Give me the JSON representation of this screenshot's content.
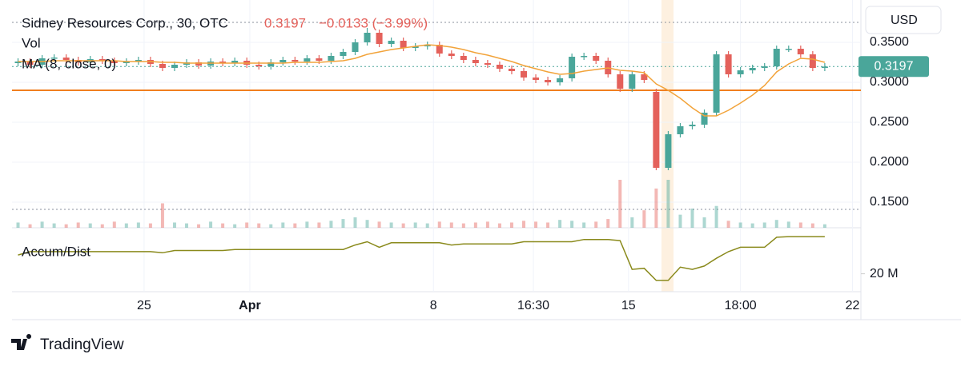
{
  "chart_data": {
    "type": "candlestick",
    "title": "Sidney Resources Corp., 30, OTC",
    "last_price": 0.3197,
    "change_label": "−0.0133 (−3.99%)",
    "volume_label": "Vol",
    "ma_label": "MA (8, close, 0)",
    "ad_label": "Accum/Dist",
    "currency": "USD",
    "brand": "TradingView",
    "grid": true,
    "up_color": "#4aa69a",
    "down_color": "#e4615b",
    "ma_color": "#f2a33a",
    "ad_color": "#8a8a1c",
    "level_color": "#f07f1f",
    "level": 0.29,
    "dotted_levels": [
      0.375,
      0.141
    ],
    "xlim": [
      -0.5,
      70
    ],
    "xticks": [
      {
        "value": 10.47,
        "label": "25"
      },
      {
        "value": 19.25,
        "label": "Apr"
      },
      {
        "value": 34.5,
        "label": "8"
      },
      {
        "value": 42.8,
        "label": "16:30"
      },
      {
        "value": 50.7,
        "label": "15"
      },
      {
        "value": 60,
        "label": "18:00"
      },
      {
        "value": 69.3,
        "label": "22"
      }
    ],
    "ylim": [
      0.12,
      0.4
    ],
    "yticks": [
      {
        "value": 0.35,
        "label": "0.3500"
      },
      {
        "value": 0.3,
        "label": "0.3000"
      },
      {
        "value": 0.25,
        "label": "0.2500"
      },
      {
        "value": 0.2,
        "label": "0.2000"
      },
      {
        "value": 0.15,
        "label": "0.1500"
      }
    ],
    "y2lim": [
      13,
      39
    ],
    "y2ticks": [
      {
        "value": 20,
        "label": "20 M"
      }
    ],
    "open": [
      0.324,
      0.326,
      0.322,
      0.33,
      0.331,
      0.328,
      0.325,
      0.329,
      0.327,
      0.324,
      0.326,
      0.328,
      0.323,
      0.318,
      0.322,
      0.325,
      0.321,
      0.326,
      0.324,
      0.327,
      0.322,
      0.32,
      0.325,
      0.328,
      0.326,
      0.33,
      0.327,
      0.333,
      0.338,
      0.35,
      0.362,
      0.348,
      0.352,
      0.343,
      0.345,
      0.347,
      0.336,
      0.333,
      0.328,
      0.324,
      0.322,
      0.317,
      0.314,
      0.306,
      0.303,
      0.3,
      0.305,
      0.332,
      0.333,
      0.327,
      0.31,
      0.292,
      0.31,
      0.288,
      0.193,
      0.235,
      0.245,
      0.247,
      0.262,
      0.335,
      0.31,
      0.315,
      0.318,
      0.32,
      0.342,
      0.342,
      0.335,
      0.318
    ],
    "high": [
      0.33,
      0.33,
      0.334,
      0.335,
      0.335,
      0.332,
      0.333,
      0.333,
      0.331,
      0.33,
      0.332,
      0.332,
      0.327,
      0.326,
      0.329,
      0.329,
      0.33,
      0.33,
      0.331,
      0.331,
      0.326,
      0.329,
      0.332,
      0.332,
      0.334,
      0.334,
      0.337,
      0.342,
      0.354,
      0.368,
      0.366,
      0.356,
      0.356,
      0.349,
      0.351,
      0.351,
      0.34,
      0.337,
      0.332,
      0.328,
      0.326,
      0.321,
      0.318,
      0.31,
      0.307,
      0.309,
      0.336,
      0.337,
      0.337,
      0.331,
      0.314,
      0.314,
      0.314,
      0.292,
      0.239,
      0.249,
      0.251,
      0.266,
      0.339,
      0.339,
      0.319,
      0.322,
      0.324,
      0.346,
      0.346,
      0.346,
      0.339,
      0.324
    ],
    "low": [
      0.32,
      0.318,
      0.318,
      0.326,
      0.324,
      0.321,
      0.321,
      0.323,
      0.32,
      0.32,
      0.322,
      0.319,
      0.314,
      0.314,
      0.318,
      0.317,
      0.317,
      0.32,
      0.32,
      0.318,
      0.316,
      0.316,
      0.321,
      0.322,
      0.322,
      0.323,
      0.323,
      0.329,
      0.334,
      0.346,
      0.344,
      0.344,
      0.339,
      0.339,
      0.341,
      0.332,
      0.329,
      0.324,
      0.32,
      0.318,
      0.313,
      0.31,
      0.302,
      0.299,
      0.296,
      0.296,
      0.301,
      0.328,
      0.323,
      0.306,
      0.288,
      0.288,
      0.299,
      0.19,
      0.19,
      0.231,
      0.241,
      0.243,
      0.258,
      0.306,
      0.306,
      0.311,
      0.314,
      0.316,
      0.338,
      0.331,
      0.314,
      0.314
    ],
    "close": [
      0.326,
      0.322,
      0.33,
      0.331,
      0.328,
      0.325,
      0.329,
      0.327,
      0.324,
      0.326,
      0.328,
      0.323,
      0.318,
      0.322,
      0.325,
      0.321,
      0.326,
      0.324,
      0.327,
      0.322,
      0.32,
      0.325,
      0.328,
      0.326,
      0.33,
      0.327,
      0.333,
      0.338,
      0.35,
      0.362,
      0.348,
      0.352,
      0.343,
      0.345,
      0.347,
      0.336,
      0.333,
      0.328,
      0.324,
      0.322,
      0.317,
      0.314,
      0.306,
      0.303,
      0.3,
      0.305,
      0.332,
      0.333,
      0.327,
      0.31,
      0.292,
      0.31,
      0.303,
      0.193,
      0.235,
      0.245,
      0.247,
      0.262,
      0.335,
      0.31,
      0.315,
      0.318,
      0.32,
      0.342,
      0.342,
      0.335,
      0.318,
      0.3197
    ],
    "volume": [
      6,
      4,
      7,
      5,
      4,
      6,
      5,
      4,
      7,
      5,
      6,
      5,
      28,
      6,
      5,
      4,
      7,
      5,
      4,
      6,
      5,
      4,
      6,
      5,
      7,
      6,
      8,
      10,
      12,
      9,
      7,
      6,
      5,
      6,
      5,
      7,
      6,
      5,
      6,
      7,
      5,
      6,
      8,
      7,
      6,
      9,
      8,
      6,
      7,
      10,
      55,
      12,
      20,
      45,
      55,
      15,
      22,
      12,
      25,
      8,
      6,
      5,
      6,
      9,
      7,
      6,
      5,
      4
    ],
    "ma": [
      0.326,
      0.326,
      0.326,
      0.327,
      0.327,
      0.327,
      0.327,
      0.327,
      0.327,
      0.326,
      0.326,
      0.326,
      0.325,
      0.325,
      0.324,
      0.324,
      0.324,
      0.324,
      0.324,
      0.324,
      0.324,
      0.324,
      0.324,
      0.325,
      0.325,
      0.325,
      0.326,
      0.327,
      0.33,
      0.335,
      0.338,
      0.341,
      0.343,
      0.345,
      0.347,
      0.346,
      0.344,
      0.341,
      0.337,
      0.334,
      0.33,
      0.326,
      0.321,
      0.317,
      0.313,
      0.31,
      0.311,
      0.314,
      0.316,
      0.318,
      0.315,
      0.314,
      0.312,
      0.298,
      0.29,
      0.28,
      0.268,
      0.258,
      0.258,
      0.265,
      0.274,
      0.284,
      0.296,
      0.313,
      0.323,
      0.33,
      0.329,
      0.325
    ],
    "ad": [
      28.5,
      30,
      30,
      30,
      30,
      30,
      30,
      30,
      30,
      30,
      30,
      30,
      29.5,
      30.5,
      30.5,
      30.5,
      30.5,
      30.5,
      31,
      31,
      31,
      31,
      31,
      31,
      31,
      31,
      31,
      31,
      33,
      34.5,
      32,
      34,
      34,
      34,
      34,
      34,
      33,
      33.5,
      33.5,
      33.5,
      33.5,
      33.5,
      34.5,
      34.5,
      34.5,
      34.5,
      34.5,
      35.5,
      35.5,
      35.5,
      35,
      22,
      22.5,
      17,
      17,
      23,
      22,
      23.5,
      27,
      30,
      32,
      32,
      32,
      36.5,
      36.8,
      36.8,
      36.8,
      36.8
    ]
  }
}
